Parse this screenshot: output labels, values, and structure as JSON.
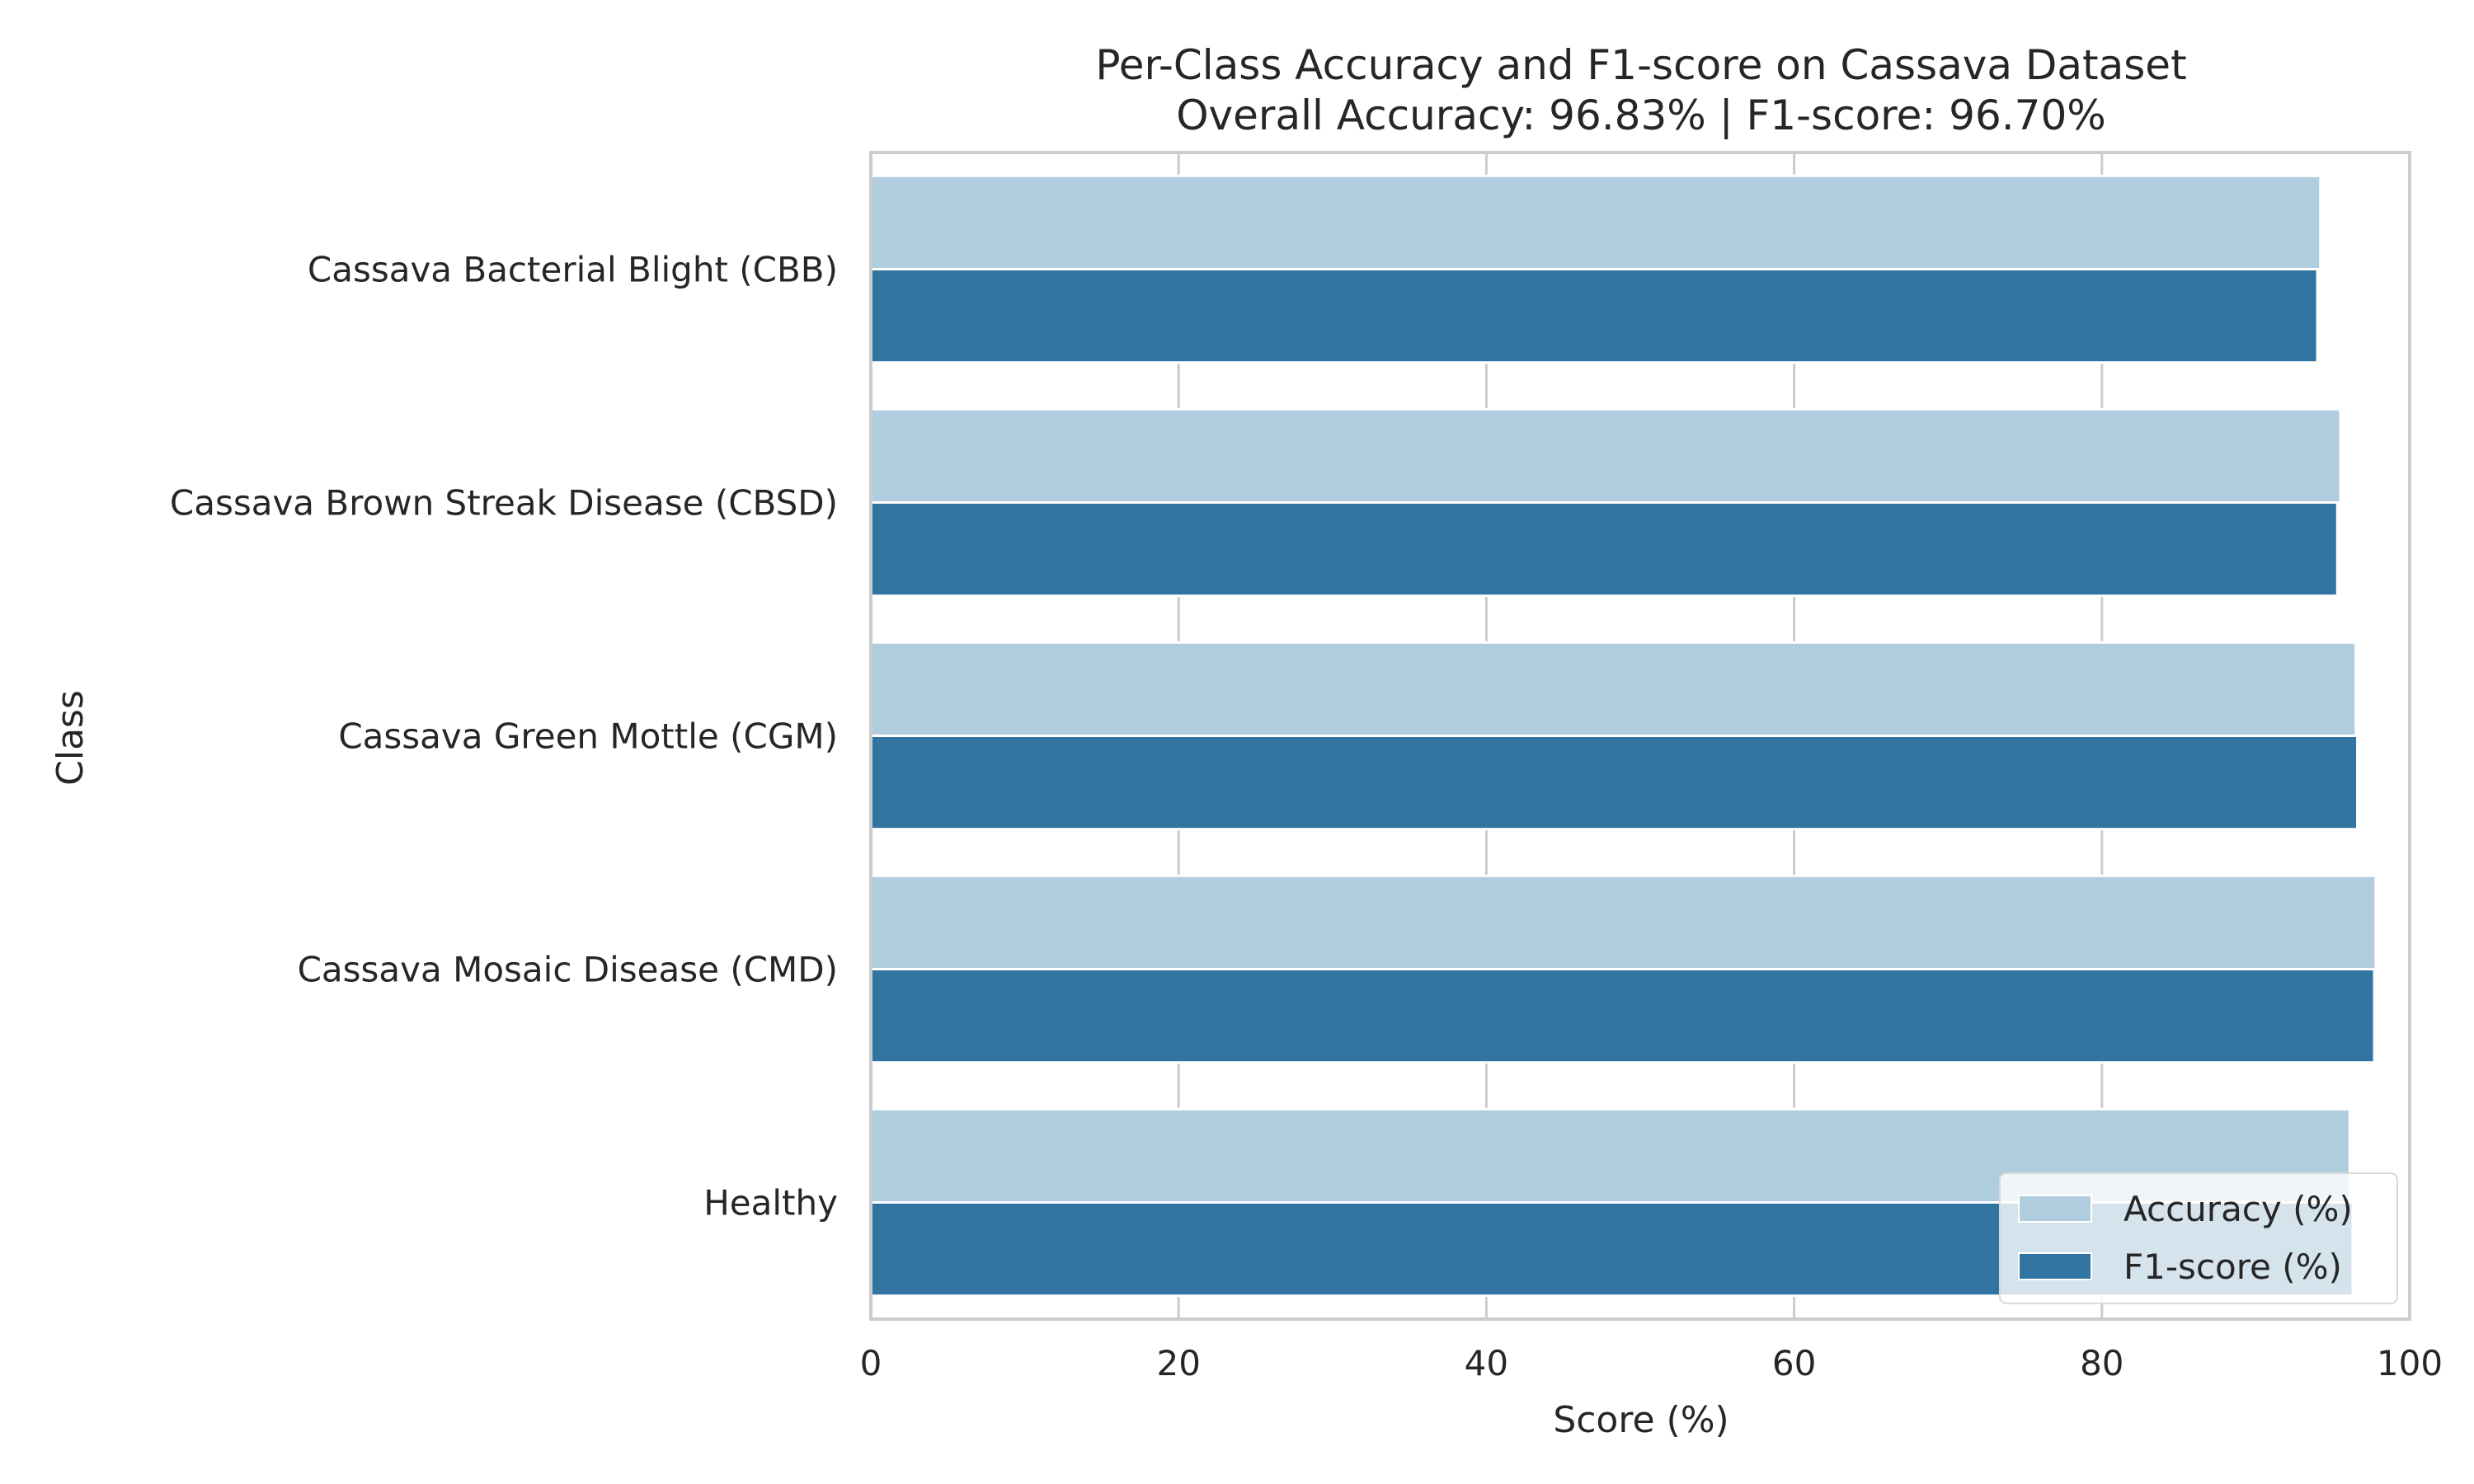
{
  "chart_data": {
    "type": "bar",
    "orientation": "horizontal",
    "title": "Per-Class Accuracy and F1-score on Cassava Dataset",
    "subtitle": "Overall Accuracy: 96.83% | F1-score: 96.70%",
    "xlabel": "Score (%)",
    "ylabel": "Class",
    "xlim": [
      0,
      100
    ],
    "xticks": [
      0,
      20,
      40,
      60,
      80,
      100
    ],
    "grid": true,
    "legend_position": "bottom-right",
    "categories": [
      "Cassava Bacterial Blight (CBB)",
      "Cassava Brown Streak Disease (CBSD)",
      "Cassava Green Mottle (CGM)",
      "Cassava Mosaic Disease (CMD)",
      "Healthy"
    ],
    "series": [
      {
        "name": "Accuracy (%)",
        "color": "#b0cde0",
        "values": [
          94.2,
          95.5,
          96.5,
          97.8,
          96.1
        ]
      },
      {
        "name": "F1-score (%)",
        "color": "#3174a1",
        "values": [
          94.0,
          95.3,
          96.6,
          97.7,
          96.3
        ]
      }
    ]
  }
}
